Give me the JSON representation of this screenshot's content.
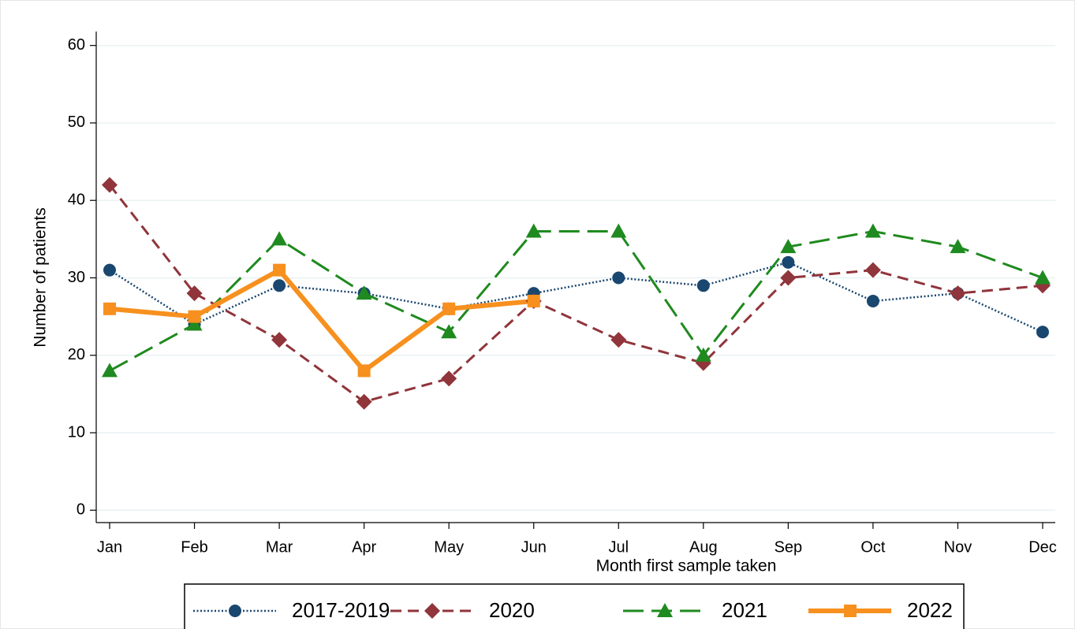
{
  "chart_data": {
    "type": "line",
    "x_label": "Month first sample taken",
    "y_label": "Number of patients",
    "categories": [
      "Jan",
      "Feb",
      "Mar",
      "Apr",
      "May",
      "Jun",
      "Jul",
      "Aug",
      "Sep",
      "Oct",
      "Nov",
      "Dec"
    ],
    "ylim": [
      -1.6,
      61.8
    ],
    "yticks": [
      0,
      10,
      20,
      30,
      40,
      50,
      60
    ],
    "grid": true,
    "legend": "bottom",
    "series": [
      {
        "name": "2017-2019",
        "color": "#1a476f",
        "line_style": "dotted",
        "marker": "circle",
        "values": [
          31,
          24,
          29,
          28,
          26,
          28,
          30,
          29,
          32,
          27,
          28,
          23
        ]
      },
      {
        "name": "2020",
        "color": "#90353b",
        "line_style": "dashed",
        "marker": "diamond",
        "values": [
          42,
          28,
          22,
          14,
          17,
          27,
          22,
          19,
          30,
          31,
          28,
          29
        ]
      },
      {
        "name": "2021",
        "color": "#1f8a1f",
        "line_style": "longdash",
        "marker": "triangle",
        "values": [
          18,
          24,
          35,
          28,
          23,
          36,
          36,
          20,
          34,
          36,
          34,
          30
        ]
      },
      {
        "name": "2022",
        "color": "#f7901e",
        "line_style": "solid",
        "marker": "square",
        "values": [
          26,
          25,
          31,
          18,
          26,
          27,
          null,
          null,
          null,
          null,
          null,
          null
        ]
      }
    ]
  }
}
